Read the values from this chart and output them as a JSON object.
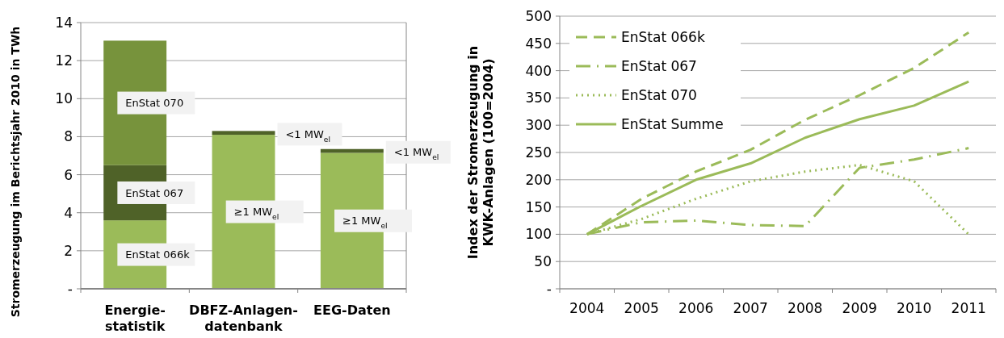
{
  "chart_data": [
    {
      "type": "bar",
      "stacked": true,
      "ylabel": "Stromerzeugung im Berichtsjahr 2010 in TWh",
      "categories": [
        "Energie-\nstatistik",
        "DBFZ-Anlagen-\ndatenbank",
        "EEG-Daten"
      ],
      "series": [
        {
          "color": "#9bbb59",
          "values": [
            3.6,
            8.1,
            7.15
          ]
        },
        {
          "color": "#4f6228",
          "values": [
            2.9,
            0.2,
            0.2
          ]
        },
        {
          "color": "#77933c",
          "values": [
            6.55,
            null,
            null
          ]
        }
      ],
      "ylim": [
        0,
        14
      ],
      "yticks": [
        {
          "value": 0,
          "label": "-"
        },
        2,
        4,
        6,
        8,
        10,
        12,
        14
      ],
      "grid": "y",
      "annotations": [
        "EnStat 066k",
        "EnStat 067",
        "EnStat 070",
        "≥1 MW$_{el}$",
        "<1 MW$_{el}$",
        "≥1 MW$_{el}$",
        "<1 MW$_{el}$"
      ]
    },
    {
      "type": "line",
      "ylabel": "Index der Stromerzeugung in\nKWK-Anlagen (100=2004)",
      "categories": [
        "2004",
        "2005",
        "2006",
        "2007",
        "2008",
        "2009",
        "2010",
        "2011"
      ],
      "series": [
        {
          "name": "EnStat 066k",
          "color": "#9bbb59",
          "line_style": "dashed",
          "values": [
            100,
            165,
            215,
            255,
            310,
            355,
            405,
            470
          ]
        },
        {
          "name": "EnStat 067",
          "color": "#9bbb59",
          "line_style": "dashdot",
          "values": [
            100,
            122,
            125,
            117,
            115,
            222,
            237,
            258
          ]
        },
        {
          "name": "EnStat 070",
          "color": "#9bbb59",
          "line_style": "dotted",
          "values": [
            100,
            128,
            165,
            197,
            215,
            227,
            197,
            100
          ]
        },
        {
          "name": "EnStat Summe",
          "color": "#9bbb59",
          "line_style": "solid",
          "values": [
            100,
            152,
            200,
            230,
            277,
            311,
            336,
            380
          ]
        }
      ],
      "ylim": [
        0,
        500
      ],
      "yticks": [
        {
          "value": 0,
          "label": "-"
        },
        50,
        100,
        150,
        200,
        250,
        300,
        350,
        400,
        450,
        500
      ],
      "grid": "y",
      "legend": "top left"
    }
  ]
}
